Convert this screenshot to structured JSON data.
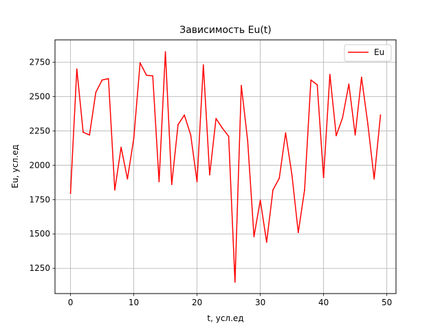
{
  "chart_data": {
    "type": "line",
    "title": "Зависимость Eu(t)",
    "xlabel": "t, усл.ед",
    "ylabel": "Eu, усл.ед",
    "xlim": [
      -2.45,
      51.45
    ],
    "ylim": [
      1066,
      2912
    ],
    "xticks": [
      0,
      10,
      20,
      30,
      40,
      50
    ],
    "yticks": [
      1250,
      1500,
      1750,
      2000,
      2250,
      2500,
      2750
    ],
    "grid": true,
    "legend_position": "top-right",
    "series": [
      {
        "name": "Eu",
        "color": "#ff0000",
        "x": [
          0,
          1,
          2,
          3,
          4,
          5,
          6,
          7,
          8,
          9,
          10,
          11,
          12,
          13,
          14,
          15,
          16,
          17,
          18,
          19,
          20,
          21,
          22,
          23,
          24,
          25,
          26,
          27,
          28,
          29,
          30,
          31,
          32,
          33,
          34,
          35,
          36,
          37,
          38,
          39,
          40,
          41,
          42,
          43,
          44,
          45,
          46,
          47,
          48,
          49
        ],
        "values": [
          1795,
          2700,
          2240,
          2220,
          2530,
          2620,
          2630,
          1820,
          2130,
          1900,
          2195,
          2745,
          2655,
          2650,
          1880,
          2825,
          1860,
          2295,
          2365,
          2220,
          1880,
          2730,
          1930,
          2340,
          2270,
          2210,
          1150,
          2580,
          2180,
          1480,
          1745,
          1440,
          1820,
          1905,
          2235,
          1930,
          1510,
          1820,
          2620,
          2585,
          1910,
          2660,
          2215,
          2345,
          2590,
          2220,
          2640,
          2300,
          1900,
          2365
        ]
      }
    ]
  }
}
